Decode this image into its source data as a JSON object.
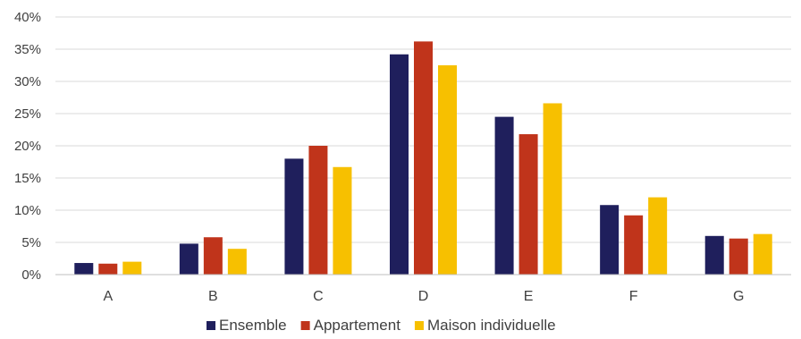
{
  "chart_data": {
    "type": "bar",
    "categories": [
      "A",
      "B",
      "C",
      "D",
      "E",
      "F",
      "G"
    ],
    "series": [
      {
        "name": "Ensemble",
        "color": "#1f1f5c",
        "values": [
          1.8,
          4.8,
          18.0,
          34.2,
          24.5,
          10.8,
          6.0
        ]
      },
      {
        "name": "Appartement",
        "color": "#c0341b",
        "values": [
          1.7,
          5.8,
          20.0,
          36.2,
          21.8,
          9.2,
          5.6
        ]
      },
      {
        "name": "Maison individuelle",
        "color": "#f7c000",
        "values": [
          2.0,
          4.0,
          16.7,
          32.5,
          26.6,
          12.0,
          6.3
        ]
      }
    ],
    "yticks": [
      "0%",
      "5%",
      "10%",
      "15%",
      "20%",
      "25%",
      "30%",
      "35%",
      "40%"
    ],
    "ylim": [
      0,
      40
    ],
    "grid": true,
    "legend_position": "bottom",
    "title": "",
    "xlabel": "",
    "ylabel": ""
  }
}
